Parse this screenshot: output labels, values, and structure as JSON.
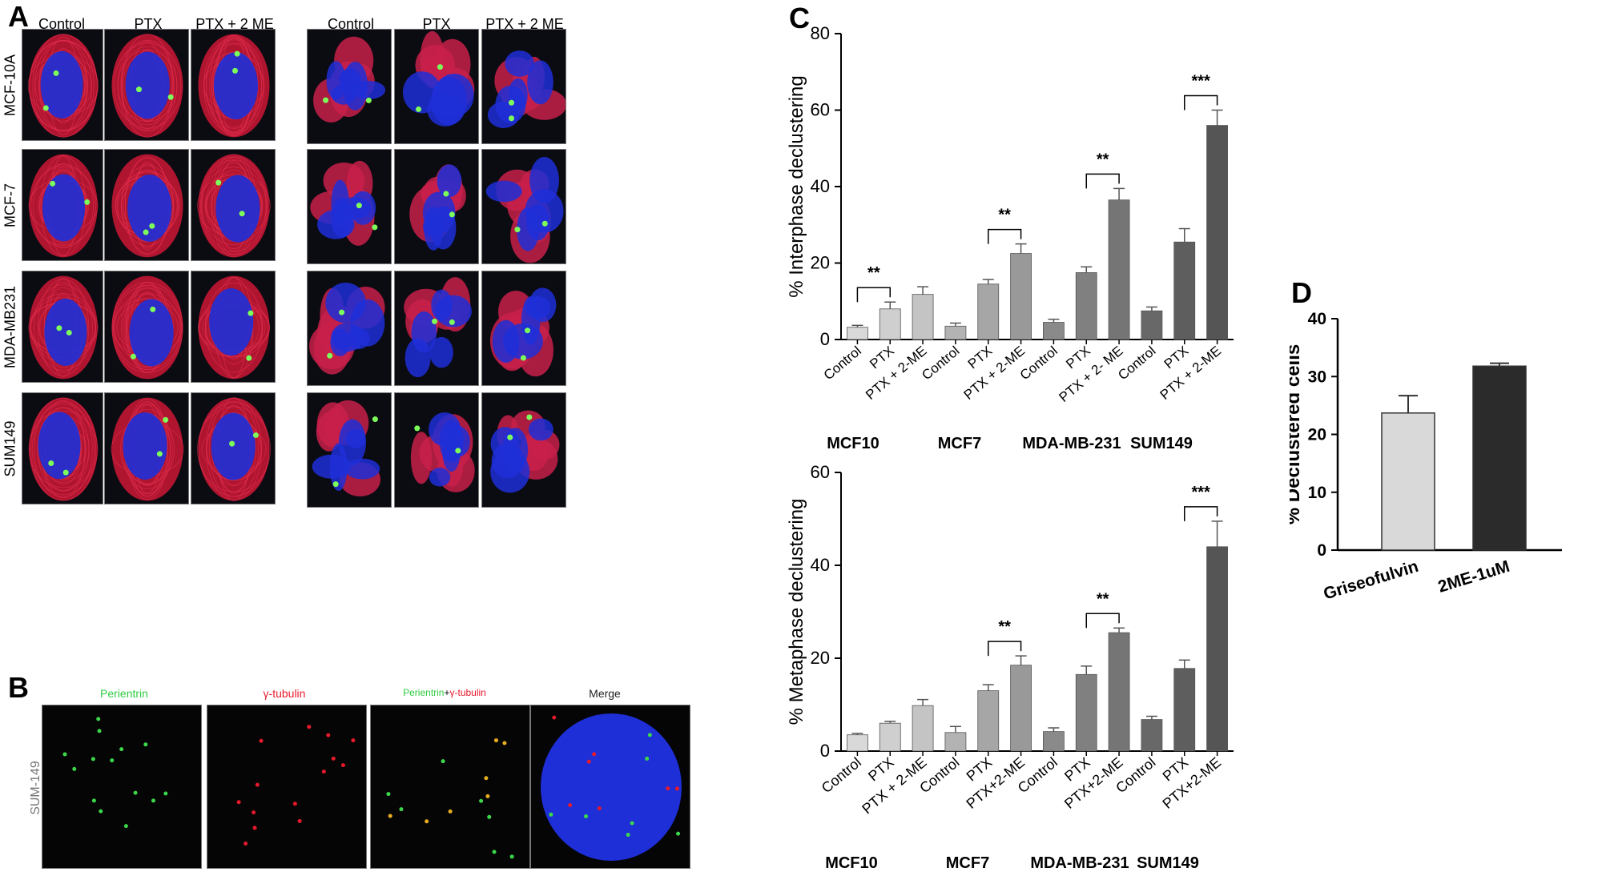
{
  "panels": {
    "a": "A",
    "b": "B",
    "c": "C",
    "d": "D"
  },
  "panelA": {
    "columns_left": [
      "Control",
      "PTX",
      "PTX + 2 ME"
    ],
    "columns_right": [
      "Control",
      "PTX",
      "PTX + 2 ME"
    ],
    "rows": [
      "MCF-10A",
      "MCF-7",
      "MDA-MB231",
      "SUM149"
    ]
  },
  "panelB": {
    "headers": {
      "perientrin": "Perientrin",
      "gtubulin": "γ-tubulin",
      "combined_a": "Perientrin",
      "combined_plus": "+",
      "combined_b": "γ-tubulin",
      "merge": "Merge"
    },
    "row_label": "SUM-149"
  },
  "colors": {
    "green": "#2ecc40",
    "red": "#e8192c",
    "blue": "#1e2fd8",
    "light_bar": "#d9d9d9",
    "dark_bar": "#2b2b2b"
  },
  "chart_data": [
    {
      "id": "interphase",
      "type": "bar",
      "ylabel": "% Interphase declustering",
      "ylim": [
        0,
        80
      ],
      "yticks": [
        0,
        20,
        40,
        60,
        80
      ],
      "categories": [
        "Control",
        "PTX",
        "PTX + 2-ME",
        "Control",
        "PTX",
        "PTX + 2-ME",
        "Control",
        "PTX",
        "PTX + 2- ME",
        "Control",
        "PTX",
        "PTX + 2-ME"
      ],
      "values": [
        3.2,
        8,
        11.8,
        3.5,
        14.5,
        22.5,
        4.5,
        17.5,
        36.5,
        7.5,
        25.5,
        56
      ],
      "errors": [
        0.5,
        1.8,
        2,
        0.8,
        1.2,
        2.5,
        0.8,
        1.5,
        3,
        1,
        3.5,
        4
      ],
      "colors": [
        "#d9d9d9",
        "#cfcfcf",
        "#c4c4c4",
        "#b3b3b3",
        "#a6a6a6",
        "#999999",
        "#8a8a8a",
        "#808080",
        "#757575",
        "#686868",
        "#5e5e5e",
        "#555555"
      ],
      "groups": [
        "MCF10",
        "MCF7",
        "MDA-MB-231",
        "SUM149"
      ],
      "significance": [
        {
          "from": 0,
          "to": 1,
          "label": "**"
        },
        {
          "from": 4,
          "to": 5,
          "label": "**"
        },
        {
          "from": 7,
          "to": 8,
          "label": "**"
        },
        {
          "from": 10,
          "to": 11,
          "label": "***"
        }
      ]
    },
    {
      "id": "metaphase",
      "type": "bar",
      "ylabel": "% Metaphase declustering",
      "ylim": [
        0,
        60
      ],
      "yticks": [
        0,
        20,
        40,
        60
      ],
      "categories": [
        "Control",
        "PTX",
        "PTX + 2-ME",
        "Control",
        "PTX",
        "PTX+2-ME",
        "Control",
        "PTX",
        "PTX+2-ME",
        "Control",
        "PTX",
        "PTX+2-ME"
      ],
      "values": [
        3.5,
        6,
        9.8,
        4,
        13,
        18.5,
        4.2,
        16.5,
        25.5,
        6.8,
        17.8,
        44
      ],
      "errors": [
        0.3,
        0.4,
        1.3,
        1.3,
        1.3,
        2,
        0.8,
        1.8,
        1,
        0.7,
        1.8,
        5.5
      ],
      "colors": [
        "#d9d9d9",
        "#cfcfcf",
        "#c4c4c4",
        "#b3b3b3",
        "#a6a6a6",
        "#999999",
        "#8a8a8a",
        "#808080",
        "#757575",
        "#686868",
        "#5e5e5e",
        "#555555"
      ],
      "groups": [
        "MCF10",
        "MCF7",
        "MDA-MB-231",
        "SUM149"
      ],
      "significance": [
        {
          "from": 4,
          "to": 5,
          "label": "**"
        },
        {
          "from": 7,
          "to": 8,
          "label": "**"
        },
        {
          "from": 10,
          "to": 11,
          "label": "***"
        }
      ]
    },
    {
      "id": "declustered",
      "type": "bar",
      "ylabel": "% Declustered cells",
      "ylim": [
        0,
        40
      ],
      "yticks": [
        0,
        10,
        20,
        30,
        40
      ],
      "categories": [
        "Griseofulvin",
        "2ME-1uM"
      ],
      "values": [
        23.7,
        31.8
      ],
      "errors": [
        3,
        0.5
      ],
      "colors": [
        "#d9d9d9",
        "#2b2b2b"
      ]
    }
  ]
}
